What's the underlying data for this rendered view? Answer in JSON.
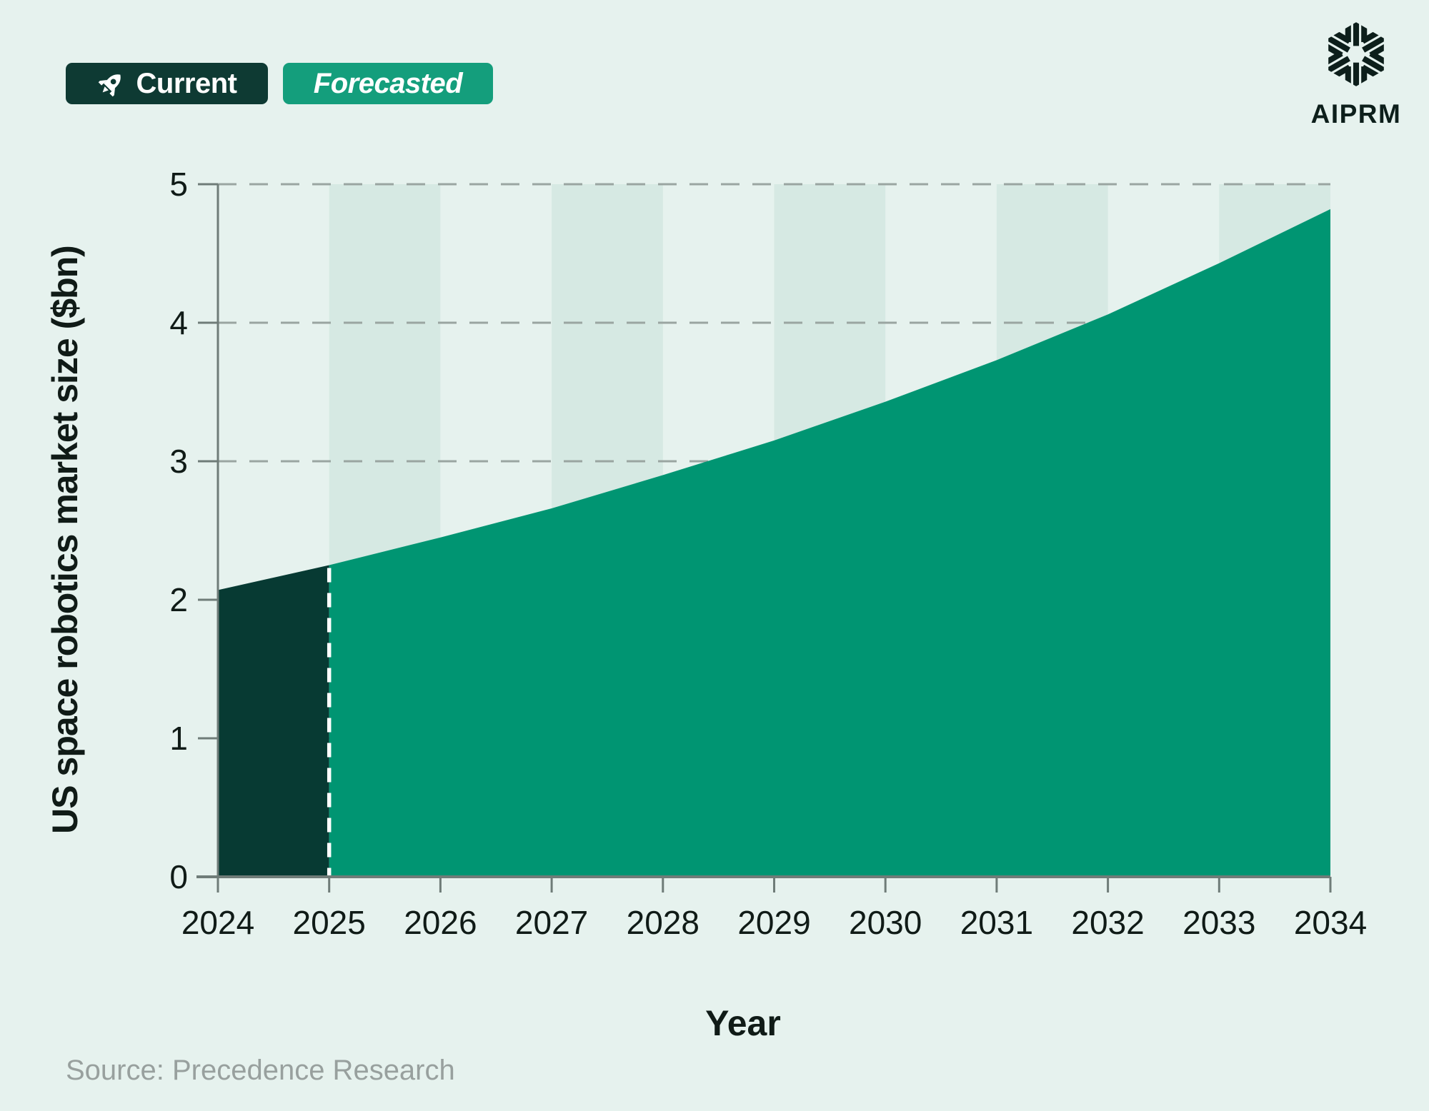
{
  "header": {
    "legend": {
      "current": {
        "label": "Current",
        "icon": "rocket-icon",
        "bg": "#0e3a33",
        "text_color": "#ffffff"
      },
      "forecast": {
        "label": "Forecasted",
        "bg": "#149e7c",
        "text_color": "#ffffff",
        "italic": true
      }
    },
    "brand": {
      "name": "AIPRM",
      "logo": "aiprm-hexagon-logo",
      "color": "#0d1f1b"
    }
  },
  "chart_data": {
    "type": "area",
    "categories": [
      "2024",
      "2025",
      "2026",
      "2027",
      "2028",
      "2029",
      "2030",
      "2031",
      "2032",
      "2033",
      "2034"
    ],
    "series": [
      {
        "name": "Current",
        "from": "2024",
        "to": "2025",
        "values": [
          2.07,
          2.25
        ]
      },
      {
        "name": "Forecasted",
        "from": "2025",
        "to": "2034",
        "values": [
          2.25,
          2.45,
          2.66,
          2.9,
          3.15,
          3.43,
          3.73,
          4.06,
          4.43,
          4.82
        ]
      }
    ],
    "xlabel": "Year",
    "ylabel": "US space robotics market size ($bn)",
    "ylim": [
      0,
      5
    ],
    "yticks": [
      "0",
      "1",
      "2",
      "3",
      "4",
      "5"
    ],
    "grid": "horizontal-dashed",
    "background_bands": "alternating one-year vertical stripes starting 2025-2026",
    "divider_year": "2025",
    "divider_style": "white-dashed-vertical",
    "legend_position": "top-left"
  },
  "footer": {
    "source": "Source: Precedence Research"
  },
  "colors": {
    "background": "#e6f2ee",
    "stripe_band": "#d6e9e3",
    "current_area": "#073a33",
    "forecast_area": "#009572",
    "gridline": "#9aa5a1",
    "axis": "#6f7c78",
    "tick_text": "#101b17",
    "source_text": "#98a09e",
    "divider": "#ffffff"
  }
}
